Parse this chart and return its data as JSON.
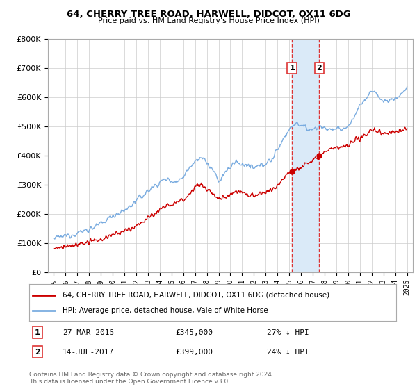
{
  "title": "64, CHERRY TREE ROAD, HARWELL, DIDCOT, OX11 6DG",
  "subtitle": "Price paid vs. HM Land Registry's House Price Index (HPI)",
  "legend_property": "64, CHERRY TREE ROAD, HARWELL, DIDCOT, OX11 6DG (detached house)",
  "legend_hpi": "HPI: Average price, detached house, Vale of White Horse",
  "transaction1_label": "1",
  "transaction1_date": "27-MAR-2015",
  "transaction1_price": "£345,000",
  "transaction1_hpi": "27% ↓ HPI",
  "transaction1_year": 2015.23,
  "transaction1_value": 345000,
  "transaction2_label": "2",
  "transaction2_date": "14-JUL-2017",
  "transaction2_price": "£399,000",
  "transaction2_hpi": "24% ↓ HPI",
  "transaction2_year": 2017.54,
  "transaction2_value": 399000,
  "footer": "Contains HM Land Registry data © Crown copyright and database right 2024.\nThis data is licensed under the Open Government Licence v3.0.",
  "ylim": [
    0,
    800000
  ],
  "xlim_start": 1994.5,
  "xlim_end": 2025.5,
  "property_color": "#cc0000",
  "hpi_color": "#7aace0",
  "shade_color": "#daeaf8",
  "vline_color": "#dd3333",
  "background_color": "#ffffff",
  "grid_color": "#cccccc"
}
